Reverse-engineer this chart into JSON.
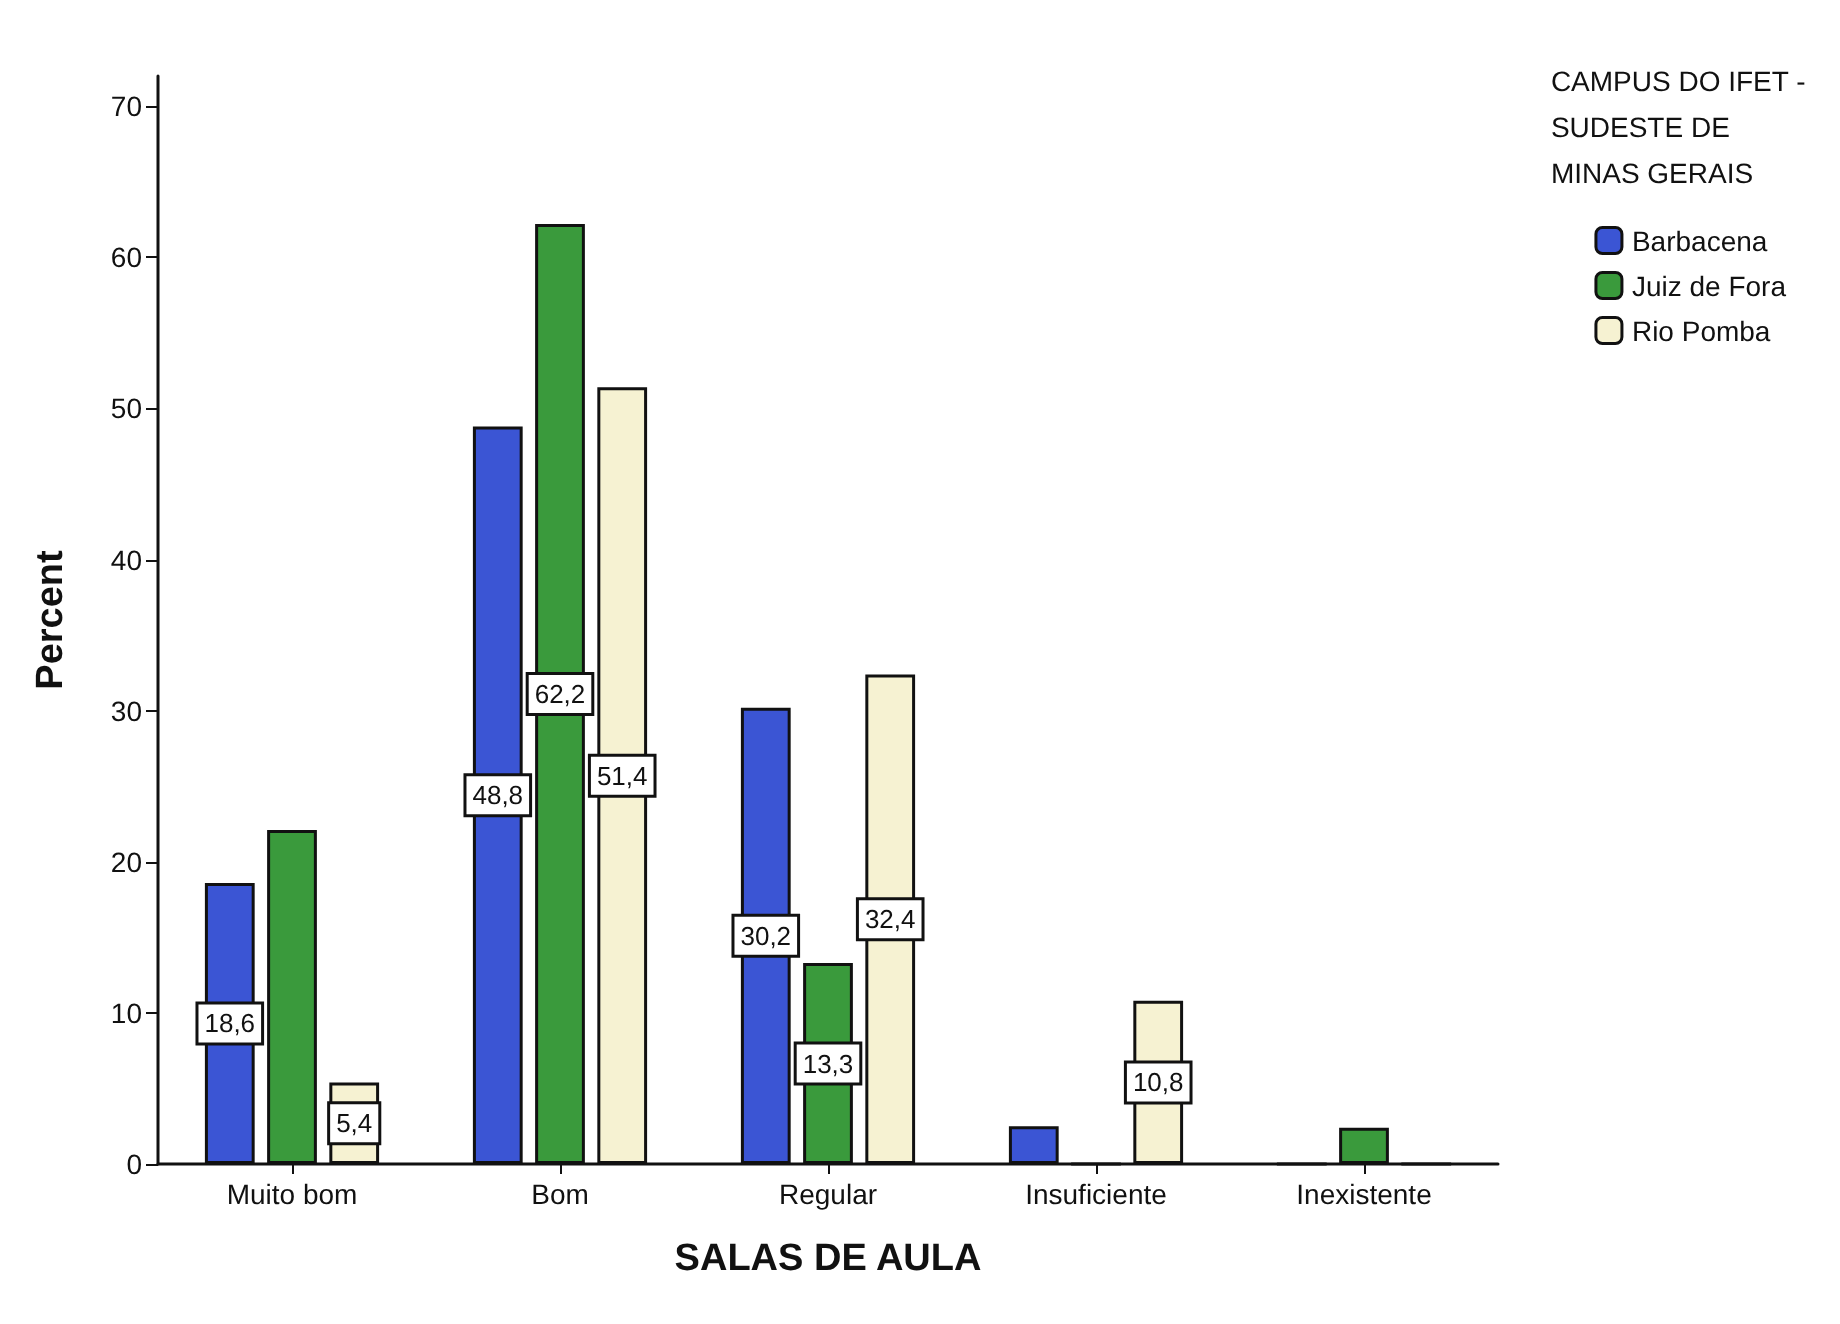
{
  "chart_data": {
    "type": "bar",
    "xlabel": "SALAS DE AULA",
    "ylabel": "Percent",
    "legend_title": "CAMPUS DO IFET -\nSUDESTE DE\nMINAS GERAIS",
    "categories": [
      "Muito bom",
      "Bom",
      "Regular",
      "Insuficiente",
      "Inexistente"
    ],
    "series": [
      {
        "name": "Barbacena",
        "color": "#3b55d4",
        "values": [
          18.6,
          48.8,
          30.2,
          2.5,
          0
        ],
        "value_labels": [
          "18,6",
          "48,8",
          "30,2",
          null,
          null
        ]
      },
      {
        "name": "Juiz de Fora",
        "color": "#3a9a3c",
        "values": [
          22.1,
          62.2,
          13.3,
          0,
          2.4
        ],
        "value_labels": [
          null,
          "62,2",
          "13,3",
          null,
          null
        ]
      },
      {
        "name": "Rio Pomba",
        "color": "#f6f2d2",
        "values": [
          5.4,
          51.4,
          32.4,
          10.8,
          0
        ],
        "value_labels": [
          "5,4",
          "51,4",
          "32,4",
          "10,8",
          null
        ]
      }
    ],
    "ylim": [
      0,
      72
    ],
    "yticks": [
      0,
      10,
      20,
      30,
      40,
      50,
      60,
      70
    ],
    "grid": false,
    "legend": "top right"
  }
}
